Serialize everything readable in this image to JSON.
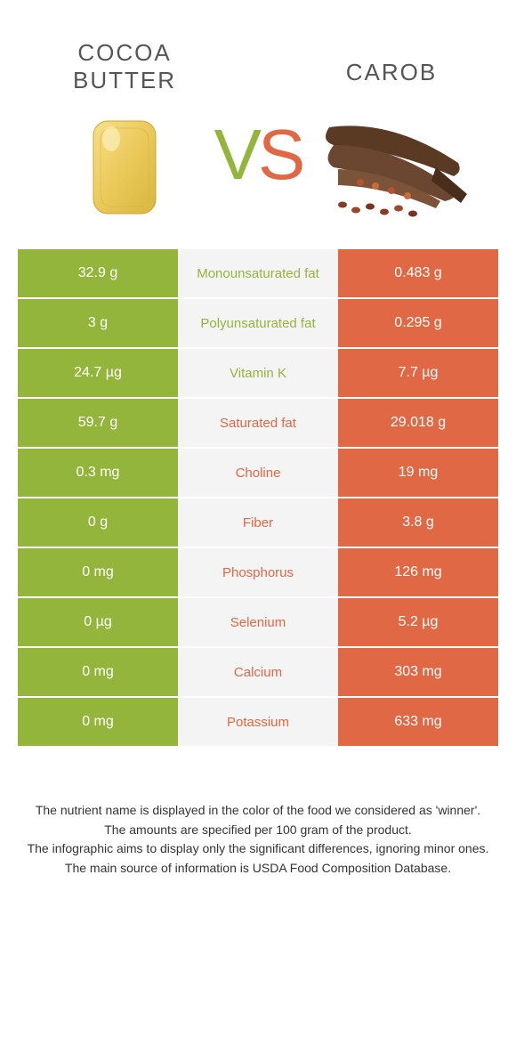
{
  "colors": {
    "green": "#94b53b",
    "orange": "#e06844",
    "mid_bg": "#f4f4f4",
    "text": "#555555"
  },
  "header": {
    "left_name": "COCOA\nBUTTER",
    "right_name": "CAROB",
    "vs_v": "V",
    "vs_s": "S"
  },
  "rows": [
    {
      "left": "32.9 g",
      "label": "Monounsaturated fat",
      "right": "0.483 g",
      "winner": "green"
    },
    {
      "left": "3 g",
      "label": "Polyunsaturated fat",
      "right": "0.295 g",
      "winner": "green"
    },
    {
      "left": "24.7 µg",
      "label": "Vitamin K",
      "right": "7.7 µg",
      "winner": "green"
    },
    {
      "left": "59.7 g",
      "label": "Saturated fat",
      "right": "29.018 g",
      "winner": "orange"
    },
    {
      "left": "0.3 mg",
      "label": "Choline",
      "right": "19 mg",
      "winner": "orange"
    },
    {
      "left": "0 g",
      "label": "Fiber",
      "right": "3.8 g",
      "winner": "orange"
    },
    {
      "left": "0 mg",
      "label": "Phosphorus",
      "right": "126 mg",
      "winner": "orange"
    },
    {
      "left": "0 µg",
      "label": "Selenium",
      "right": "5.2 µg",
      "winner": "orange"
    },
    {
      "left": "0 mg",
      "label": "Calcium",
      "right": "303 mg",
      "winner": "orange"
    },
    {
      "left": "0 mg",
      "label": "Potassium",
      "right": "633 mg",
      "winner": "orange"
    }
  ],
  "footer": {
    "l1": "The nutrient name is displayed in the color of the food we considered as 'winner'.",
    "l2": "The amounts are specified per 100 gram of the product.",
    "l3": "The infographic aims to display only the significant differences, ignoring minor ones.",
    "l4": "The main source of information is USDA Food Composition Database."
  }
}
